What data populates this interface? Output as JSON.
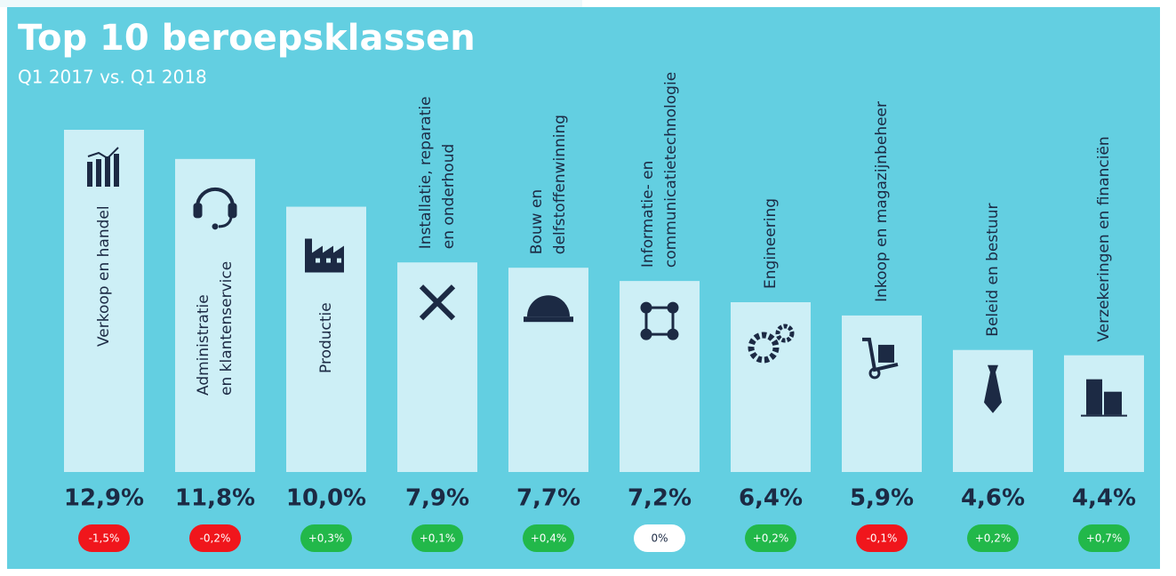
{
  "chart_data": {
    "type": "bar",
    "title": "Top 10 beroepsklassen",
    "subtitle": "Q1 2017 vs. Q1 2018",
    "categories": [
      [
        "Verkoop en handel"
      ],
      [
        "Administratie",
        "en klantenservice"
      ],
      [
        "Productie"
      ],
      [
        "Installatie, reparatie",
        "en onderhoud"
      ],
      [
        "Bouw en",
        "delfstoffenwinning"
      ],
      [
        "Informatie- en",
        "communicatietechnologie"
      ],
      [
        "Engineering"
      ],
      [
        "Inkoop en magazijnbeheer"
      ],
      [
        "Beleid en bestuur"
      ],
      [
        "Verzekeringen en financiën"
      ]
    ],
    "values": [
      12.9,
      11.8,
      10.0,
      7.9,
      7.7,
      7.2,
      6.4,
      5.9,
      4.6,
      4.4
    ],
    "value_labels": [
      "12,9%",
      "11,8%",
      "10,0%",
      "7,9%",
      "7,7%",
      "7,2%",
      "6,4%",
      "5,9%",
      "4,6%",
      "4,4%"
    ],
    "changes": [
      -1.5,
      -0.2,
      0.3,
      0.1,
      0.4,
      0,
      0.2,
      -0.1,
      0.2,
      0.7
    ],
    "change_labels": [
      "-1,5%",
      "-0,2%",
      "+0,3%",
      "+0,1%",
      "+0,4%",
      "0%",
      "+0,2%",
      "-0,1%",
      "+0,2%",
      "+0,7%"
    ],
    "color": "#cdeff6",
    "change_colors": {
      "negative": "#f0161c",
      "zero": "#ffffff",
      "positive": "#22b84a"
    }
  }
}
